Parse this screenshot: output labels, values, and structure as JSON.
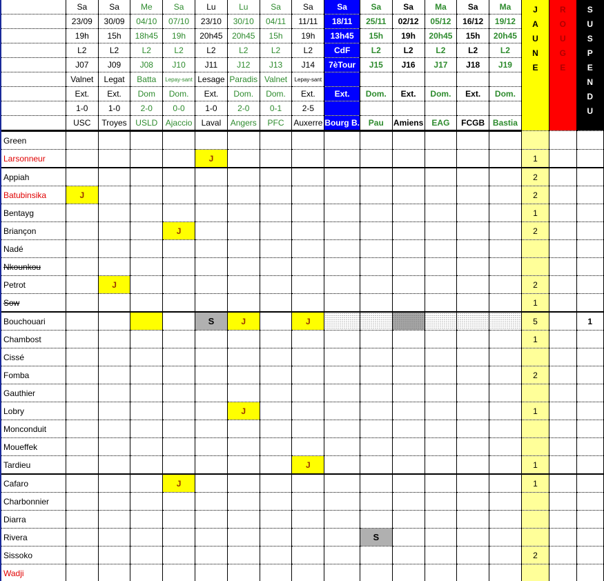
{
  "columns": [
    {
      "day": "Sa",
      "date": "23/09",
      "time": "19h",
      "comp": "L2",
      "round": "J07",
      "referee": "Valnet",
      "venue": "Ext.",
      "score": "1-0",
      "opponent": "USC",
      "style": ""
    },
    {
      "day": "Sa",
      "date": "30/09",
      "time": "15h",
      "comp": "L2",
      "round": "J09",
      "referee": "Legat",
      "venue": "Ext.",
      "score": "1-0",
      "opponent": "Troyes",
      "style": ""
    },
    {
      "day": "Me",
      "date": "04/10",
      "time": "18h45",
      "comp": "L2",
      "round": "J08",
      "referee": "Batta",
      "venue": "Dom",
      "score": "2-0",
      "opponent": "USLD",
      "style": "green"
    },
    {
      "day": "Sa",
      "date": "07/10",
      "time": "19h",
      "comp": "L2",
      "round": "J10",
      "referee": "Lepay-sant",
      "venue": "Dom.",
      "score": "0-0",
      "opponent": "Ajaccio",
      "style": "green"
    },
    {
      "day": "Lu",
      "date": "23/10",
      "time": "20h45",
      "comp": "L2",
      "round": "J11",
      "referee": "Lesage",
      "venue": "Ext.",
      "score": "1-0",
      "opponent": "Laval",
      "style": ""
    },
    {
      "day": "Lu",
      "date": "30/10",
      "time": "20h45",
      "comp": "L2",
      "round": "J12",
      "referee": "Paradis",
      "venue": "Dom.",
      "score": "2-0",
      "opponent": "Angers",
      "style": "green"
    },
    {
      "day": "Sa",
      "date": "04/11",
      "time": "15h",
      "comp": "L2",
      "round": "J13",
      "referee": "Valnet",
      "venue": "Dom.",
      "score": "0-1",
      "opponent": "PFC",
      "style": "green"
    },
    {
      "day": "Sa",
      "date": "11/11",
      "time": "19h",
      "comp": "L2",
      "round": "J14",
      "referee": "Lepay-sant",
      "venue": "Ext.",
      "score": "2-5",
      "opponent": "Auxerre",
      "style": ""
    },
    {
      "day": "Sa",
      "date": "18/11",
      "time": "13h45",
      "comp": "CdF",
      "round": "7èTour",
      "referee": "",
      "venue": "Ext.",
      "score": "",
      "opponent": "Bourg B.",
      "style": "bluecol"
    },
    {
      "day": "Sa",
      "date": "25/11",
      "time": "15h",
      "comp": "L2",
      "round": "J15",
      "referee": "",
      "venue": "Dom.",
      "score": "",
      "opponent": "Pau",
      "style": "green bold"
    },
    {
      "day": "Sa",
      "date": "02/12",
      "time": "19h",
      "comp": "L2",
      "round": "J16",
      "referee": "",
      "venue": "Ext.",
      "score": "",
      "opponent": "Amiens",
      "style": "bold"
    },
    {
      "day": "Ma",
      "date": "05/12",
      "time": "20h45",
      "comp": "L2",
      "round": "J17",
      "referee": "",
      "venue": "Dom.",
      "score": "",
      "opponent": "EAG",
      "style": "green bold"
    },
    {
      "day": "Sa",
      "date": "16/12",
      "time": "15h",
      "comp": "L2",
      "round": "J18",
      "referee": "",
      "venue": "Ext.",
      "score": "",
      "opponent": "FCGB",
      "style": "bold"
    },
    {
      "day": "Ma",
      "date": "19/12",
      "time": "20h45",
      "comp": "L2",
      "round": "J19",
      "referee": "",
      "venue": "Dom.",
      "score": "",
      "opponent": "Bastia",
      "style": "green bold"
    }
  ],
  "totals_headers": {
    "jaune": "JAUNE",
    "rouge": "ROUGE",
    "suspendu": "SUSPENDU"
  },
  "colors": {
    "yellow_card": "#ffff00",
    "red_card": "#ff0000",
    "suspended": "#000000",
    "cup": "#0000ff",
    "home": "#2e8b2e"
  },
  "players": [
    {
      "name": "Green",
      "cards": {},
      "jaune": "",
      "rouge": "",
      "susp": ""
    },
    {
      "name": "Larsonneur",
      "red": true,
      "thick": true,
      "cards": {
        "4": "J"
      },
      "jaune": "1",
      "rouge": "",
      "susp": ""
    },
    {
      "name": "Appiah",
      "cards": {},
      "jaune": "2",
      "rouge": "",
      "susp": ""
    },
    {
      "name": "Batubinsika",
      "red": true,
      "cards": {
        "0": "J"
      },
      "jaune": "2",
      "rouge": "",
      "susp": ""
    },
    {
      "name": "Bentayg",
      "cards": {},
      "jaune": "1",
      "rouge": "",
      "susp": ""
    },
    {
      "name": "Briançon",
      "cards": {
        "3": "J"
      },
      "jaune": "2",
      "rouge": "",
      "susp": ""
    },
    {
      "name": "Nadé",
      "cards": {},
      "jaune": "",
      "rouge": "",
      "susp": ""
    },
    {
      "name": "Nkounkou",
      "strike": true,
      "cards": {},
      "jaune": "",
      "rouge": "",
      "susp": ""
    },
    {
      "name": "Petrot",
      "cards": {
        "1": "J"
      },
      "jaune": "2",
      "rouge": "",
      "susp": ""
    },
    {
      "name": "Sow",
      "strike": true,
      "thick": true,
      "cards": {},
      "jaune": "1",
      "rouge": "",
      "susp": ""
    },
    {
      "name": "Bouchouari",
      "cards": {
        "2": "Y",
        "4": "S",
        "5": "J",
        "7": "J",
        "8": "D",
        "9": "D",
        "10": "DD",
        "11": "D",
        "12": "D",
        "13": "D"
      },
      "jaune": "5",
      "rouge": "",
      "susp": "1"
    },
    {
      "name": "Chambost",
      "cards": {},
      "jaune": "1",
      "rouge": "",
      "susp": ""
    },
    {
      "name": "Cissé",
      "cards": {},
      "jaune": "",
      "rouge": "",
      "susp": ""
    },
    {
      "name": "Fomba",
      "cards": {},
      "jaune": "2",
      "rouge": "",
      "susp": ""
    },
    {
      "name": "Gauthier",
      "cards": {},
      "jaune": "",
      "rouge": "",
      "susp": ""
    },
    {
      "name": "Lobry",
      "cards": {
        "5": "J"
      },
      "jaune": "1",
      "rouge": "",
      "susp": ""
    },
    {
      "name": "Monconduit",
      "cards": {},
      "jaune": "",
      "rouge": "",
      "susp": ""
    },
    {
      "name": "Moueffek",
      "cards": {},
      "jaune": "",
      "rouge": "",
      "susp": ""
    },
    {
      "name": "Tardieu",
      "thick": true,
      "cards": {
        "7": "J"
      },
      "jaune": "1",
      "rouge": "",
      "susp": ""
    },
    {
      "name": "Cafaro",
      "cards": {
        "3": "J"
      },
      "jaune": "1",
      "rouge": "",
      "susp": ""
    },
    {
      "name": "Charbonnier",
      "cards": {},
      "jaune": "",
      "rouge": "",
      "susp": ""
    },
    {
      "name": "Diarra",
      "cards": {},
      "jaune": "",
      "rouge": "",
      "susp": ""
    },
    {
      "name": "Rivera",
      "cards": {
        "9": "S"
      },
      "jaune": "",
      "rouge": "",
      "susp": ""
    },
    {
      "name": "Sissoko",
      "cards": {},
      "jaune": "2",
      "rouge": "",
      "susp": ""
    },
    {
      "name": "Wadji",
      "red": true,
      "cards": {},
      "jaune": "",
      "rouge": "",
      "susp": ""
    }
  ]
}
